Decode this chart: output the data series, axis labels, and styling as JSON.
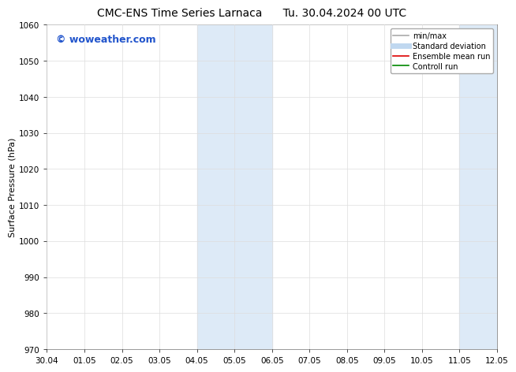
{
  "title_left": "CMC-ENS Time Series Larnaca",
  "title_right": "Tu. 30.04.2024 00 UTC",
  "ylabel": "Surface Pressure (hPa)",
  "ylim": [
    970,
    1060
  ],
  "yticks": [
    970,
    980,
    990,
    1000,
    1010,
    1020,
    1030,
    1040,
    1050,
    1060
  ],
  "xtick_labels": [
    "30.04",
    "01.05",
    "02.05",
    "03.05",
    "04.05",
    "05.05",
    "06.05",
    "07.05",
    "08.05",
    "09.05",
    "10.05",
    "11.05",
    "12.05"
  ],
  "xtick_values": [
    0,
    1,
    2,
    3,
    4,
    5,
    6,
    7,
    8,
    9,
    10,
    11,
    12
  ],
  "shade_regions": [
    {
      "x_start": 4,
      "x_end": 6,
      "color": "#ddeaf7"
    },
    {
      "x_start": 11,
      "x_end": 12,
      "color": "#ddeaf7"
    }
  ],
  "watermark_text": "© woweather.com",
  "watermark_color": "#2255cc",
  "watermark_fontsize": 9,
  "legend_entries": [
    {
      "label": "min/max",
      "color": "#aaaaaa",
      "lw": 1.2,
      "style": "solid"
    },
    {
      "label": "Standard deviation",
      "color": "#c0d8f0",
      "lw": 5,
      "style": "solid"
    },
    {
      "label": "Ensemble mean run",
      "color": "#dd0000",
      "lw": 1.2,
      "style": "solid"
    },
    {
      "label": "Controll run",
      "color": "#008800",
      "lw": 1.2,
      "style": "solid"
    }
  ],
  "bg_color": "#ffffff",
  "grid_color": "#dddddd",
  "title_fontsize": 10,
  "ylabel_fontsize": 8,
  "tick_fontsize": 7.5,
  "legend_fontsize": 7
}
